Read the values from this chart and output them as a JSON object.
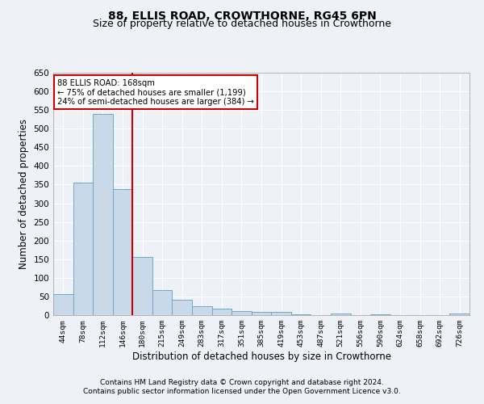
{
  "title1": "88, ELLIS ROAD, CROWTHORNE, RG45 6PN",
  "title2": "Size of property relative to detached houses in Crowthorne",
  "xlabel": "Distribution of detached houses by size in Crowthorne",
  "ylabel": "Number of detached properties",
  "bar_labels": [
    "44sqm",
    "78sqm",
    "112sqm",
    "146sqm",
    "180sqm",
    "215sqm",
    "249sqm",
    "283sqm",
    "317sqm",
    "351sqm",
    "385sqm",
    "419sqm",
    "453sqm",
    "487sqm",
    "521sqm",
    "556sqm",
    "590sqm",
    "624sqm",
    "658sqm",
    "692sqm",
    "726sqm"
  ],
  "bar_values": [
    57,
    355,
    540,
    338,
    155,
    68,
    42,
    23,
    18,
    10,
    8,
    8,
    2,
    0,
    4,
    0,
    2,
    0,
    0,
    0,
    4
  ],
  "bar_color": "#c9d9ea",
  "bar_edge_color": "#6fa8c8",
  "vline_x": 3.5,
  "vline_color": "#cc0000",
  "annotation_line1": "88 ELLIS ROAD: 168sqm",
  "annotation_line2": "← 75% of detached houses are smaller (1,199)",
  "annotation_line3": "24% of semi-detached houses are larger (384) →",
  "annotation_box_color": "#ffffff",
  "annotation_box_edge_color": "#cc0000",
  "ylim": [
    0,
    650
  ],
  "yticks": [
    0,
    50,
    100,
    150,
    200,
    250,
    300,
    350,
    400,
    450,
    500,
    550,
    600,
    650
  ],
  "footnote1": "Contains HM Land Registry data © Crown copyright and database right 2024.",
  "footnote2": "Contains public sector information licensed under the Open Government Licence v3.0.",
  "background_color": "#eef2f7",
  "grid_color": "#ffffff",
  "title1_fontsize": 10,
  "title2_fontsize": 9,
  "xlabel_fontsize": 8.5,
  "ylabel_fontsize": 8.5,
  "footnote_fontsize": 6.5
}
